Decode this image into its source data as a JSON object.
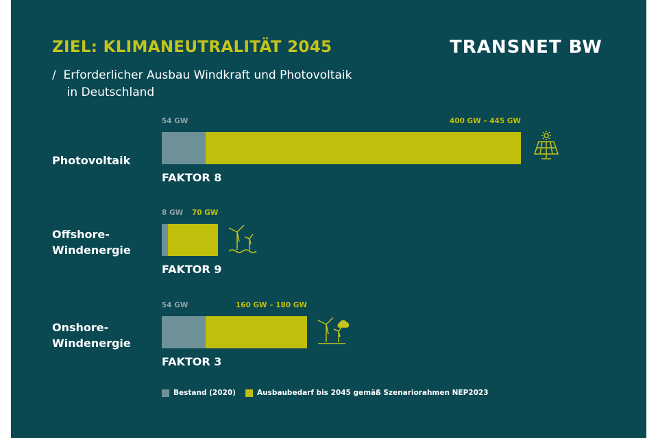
{
  "chart_data": {
    "type": "bar",
    "orientation": "horizontal",
    "title": "ZIEL: KLIMANEUTRALITÄT 2045",
    "subtitle": "/  Erforderlicher Ausbau Windkraft und Photovoltaik\n    in Deutschland",
    "brand": "TRANSNET BW",
    "categories": [
      "Photovoltaik",
      "Offshore-\nWindenergie",
      "Onshore-\nWindenergie"
    ],
    "annotations": [
      "FAKTOR 8",
      "FAKTOR 9",
      "FAKTOR 3"
    ],
    "series": [
      {
        "name": "Ausbaubedarf bis 2045 gemäß Szenariorahmen NEP2023",
        "color": "#bfbf0c",
        "values": [
          445,
          70,
          180
        ],
        "value_labels": [
          "400 GW – 445 GW",
          "70 GW",
          "160 GW – 180 GW"
        ]
      },
      {
        "name": "Bestand (2020)",
        "color": "#6e9197",
        "values": [
          54,
          8,
          54
        ],
        "value_labels": [
          "54 GW",
          "8 GW",
          "54 GW"
        ]
      }
    ]
  }
}
